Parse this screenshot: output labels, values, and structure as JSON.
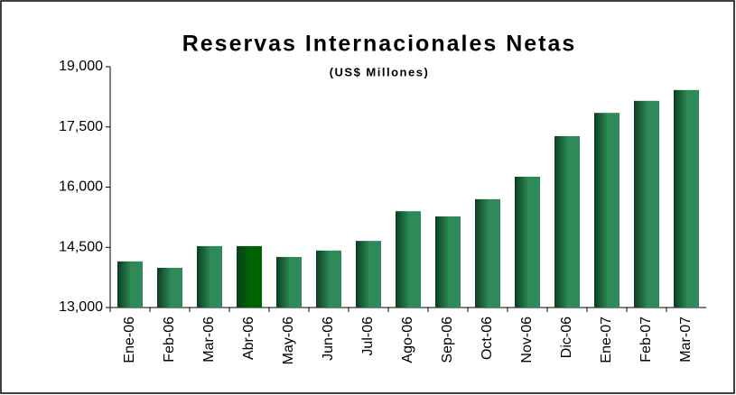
{
  "chart_data": {
    "type": "bar",
    "title": "Reservas Internacionales Netas",
    "subtitle": "(US$ Millones)",
    "categories": [
      "Ene-06",
      "Feb-06",
      "Mar-06",
      "Abr-06",
      "May-06",
      "Jun-06",
      "Jul-06",
      "Ago-06",
      "Sep-06",
      "Oct-06",
      "Nov-06",
      "Dic-06",
      "Ene-07",
      "Feb-07",
      "Mar-07"
    ],
    "values": [
      14150,
      13990,
      14530,
      14530,
      14260,
      14420,
      14660,
      15400,
      15270,
      15700,
      16260,
      17270,
      17850,
      18150,
      18420
    ],
    "colors": [
      "#2e8b57",
      "#2e8b57",
      "#2e8b57",
      "#006400",
      "#2e8b57",
      "#2e8b57",
      "#2e8b57",
      "#2e8b57",
      "#2e8b57",
      "#2e8b57",
      "#2e8b57",
      "#2e8b57",
      "#2e8b57",
      "#2e8b57",
      "#2e8b57"
    ],
    "ylim": [
      13000,
      19000
    ],
    "yticks": [
      {
        "value": 13000,
        "label": "13,000"
      },
      {
        "value": 14500,
        "label": "14,500"
      },
      {
        "value": 16000,
        "label": "16,000"
      },
      {
        "value": 17500,
        "label": "17,500"
      },
      {
        "value": 19000,
        "label": "19,000"
      }
    ],
    "grid": false
  }
}
